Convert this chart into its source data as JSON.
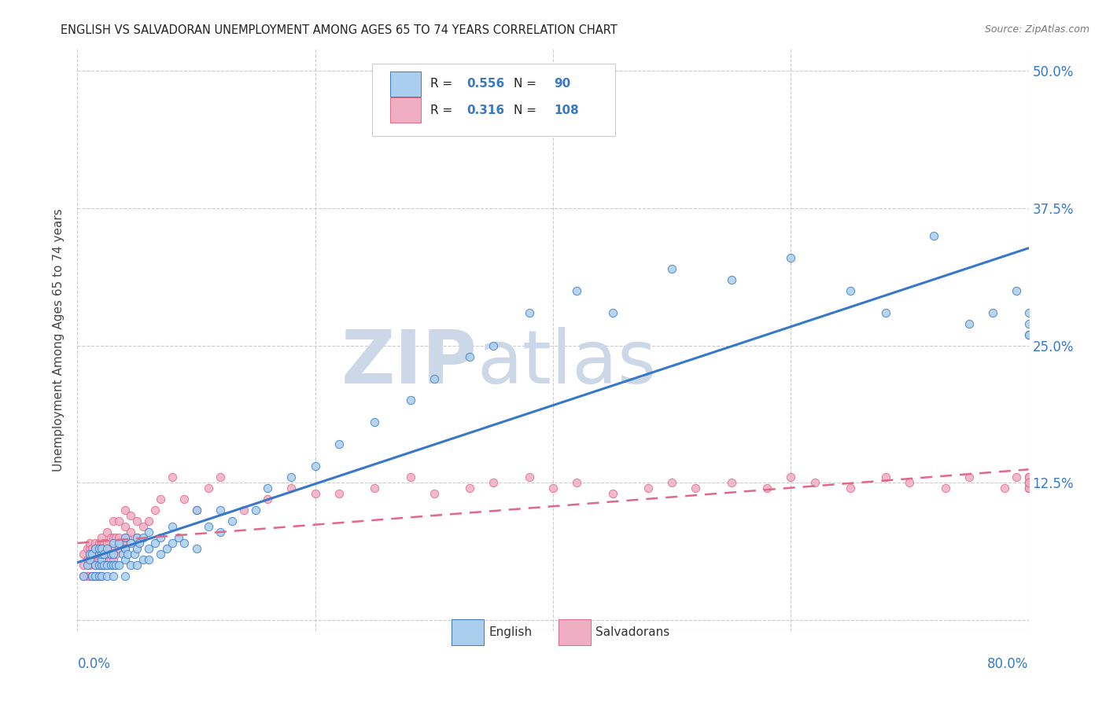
{
  "title": "ENGLISH VS SALVADORAN UNEMPLOYMENT AMONG AGES 65 TO 74 YEARS CORRELATION CHART",
  "source": "Source: ZipAtlas.com",
  "ylabel": "Unemployment Among Ages 65 to 74 years",
  "xlim": [
    0.0,
    0.8
  ],
  "ylim": [
    -0.01,
    0.52
  ],
  "yticks": [
    0.0,
    0.125,
    0.25,
    0.375,
    0.5
  ],
  "ytick_labels": [
    "",
    "12.5%",
    "25.0%",
    "37.5%",
    "50.0%"
  ],
  "xtick_left": "0.0%",
  "xtick_right": "80.0%",
  "legend_english_R": "0.556",
  "legend_english_N": "90",
  "legend_salvadoran_R": "0.316",
  "legend_salvadoran_N": "108",
  "english_color": "#aacfee",
  "salvadoran_color": "#f0aec4",
  "english_line_color": "#3878c8",
  "salvadoran_line_color": "#e06888",
  "background_color": "#ffffff",
  "watermark_color": "#ccd8e8",
  "grid_color": "#cccccc",
  "english_x": [
    0.005,
    0.008,
    0.01,
    0.01,
    0.012,
    0.012,
    0.015,
    0.015,
    0.015,
    0.018,
    0.018,
    0.018,
    0.018,
    0.02,
    0.02,
    0.02,
    0.02,
    0.02,
    0.022,
    0.022,
    0.025,
    0.025,
    0.025,
    0.028,
    0.028,
    0.03,
    0.03,
    0.03,
    0.03,
    0.032,
    0.035,
    0.035,
    0.038,
    0.04,
    0.04,
    0.04,
    0.04,
    0.042,
    0.045,
    0.045,
    0.048,
    0.05,
    0.05,
    0.05,
    0.052,
    0.055,
    0.055,
    0.06,
    0.06,
    0.06,
    0.065,
    0.07,
    0.07,
    0.075,
    0.08,
    0.08,
    0.085,
    0.09,
    0.1,
    0.1,
    0.11,
    0.12,
    0.12,
    0.13,
    0.15,
    0.16,
    0.18,
    0.2,
    0.22,
    0.25,
    0.28,
    0.3,
    0.33,
    0.35,
    0.38,
    0.42,
    0.45,
    0.5,
    0.55,
    0.6,
    0.65,
    0.68,
    0.72,
    0.75,
    0.77,
    0.79,
    0.8,
    0.8,
    0.8,
    0.8
  ],
  "english_y": [
    0.04,
    0.05,
    0.055,
    0.06,
    0.04,
    0.06,
    0.04,
    0.05,
    0.065,
    0.04,
    0.05,
    0.06,
    0.065,
    0.04,
    0.05,
    0.055,
    0.06,
    0.065,
    0.05,
    0.06,
    0.04,
    0.05,
    0.065,
    0.05,
    0.06,
    0.04,
    0.05,
    0.06,
    0.07,
    0.05,
    0.05,
    0.07,
    0.06,
    0.04,
    0.055,
    0.065,
    0.075,
    0.06,
    0.05,
    0.07,
    0.06,
    0.05,
    0.065,
    0.075,
    0.07,
    0.055,
    0.075,
    0.055,
    0.065,
    0.08,
    0.07,
    0.06,
    0.075,
    0.065,
    0.07,
    0.085,
    0.075,
    0.07,
    0.065,
    0.1,
    0.085,
    0.08,
    0.1,
    0.09,
    0.1,
    0.12,
    0.13,
    0.14,
    0.16,
    0.18,
    0.2,
    0.22,
    0.24,
    0.25,
    0.28,
    0.3,
    0.28,
    0.32,
    0.31,
    0.33,
    0.3,
    0.28,
    0.35,
    0.27,
    0.28,
    0.3,
    0.26,
    0.28,
    0.27,
    0.26
  ],
  "salvadoran_x": [
    0.005,
    0.005,
    0.005,
    0.008,
    0.008,
    0.008,
    0.01,
    0.01,
    0.01,
    0.01,
    0.01,
    0.012,
    0.012,
    0.012,
    0.015,
    0.015,
    0.015,
    0.015,
    0.015,
    0.015,
    0.018,
    0.018,
    0.018,
    0.018,
    0.018,
    0.02,
    0.02,
    0.02,
    0.02,
    0.02,
    0.02,
    0.022,
    0.022,
    0.022,
    0.025,
    0.025,
    0.025,
    0.025,
    0.028,
    0.028,
    0.028,
    0.03,
    0.03,
    0.03,
    0.03,
    0.032,
    0.032,
    0.035,
    0.035,
    0.035,
    0.038,
    0.04,
    0.04,
    0.04,
    0.04,
    0.042,
    0.045,
    0.045,
    0.05,
    0.05,
    0.055,
    0.06,
    0.065,
    0.07,
    0.08,
    0.09,
    0.1,
    0.11,
    0.12,
    0.14,
    0.16,
    0.18,
    0.2,
    0.22,
    0.25,
    0.28,
    0.3,
    0.33,
    0.35,
    0.38,
    0.4,
    0.42,
    0.45,
    0.48,
    0.5,
    0.52,
    0.55,
    0.58,
    0.6,
    0.62,
    0.65,
    0.68,
    0.7,
    0.73,
    0.75,
    0.78,
    0.79,
    0.8,
    0.8,
    0.8,
    0.8,
    0.8,
    0.8,
    0.8,
    0.8,
    0.8,
    0.8,
    0.8
  ],
  "salvadoran_y": [
    0.04,
    0.05,
    0.06,
    0.04,
    0.055,
    0.065,
    0.04,
    0.05,
    0.055,
    0.065,
    0.07,
    0.04,
    0.055,
    0.065,
    0.04,
    0.05,
    0.055,
    0.06,
    0.065,
    0.07,
    0.04,
    0.05,
    0.055,
    0.065,
    0.07,
    0.04,
    0.05,
    0.055,
    0.065,
    0.07,
    0.075,
    0.05,
    0.06,
    0.07,
    0.05,
    0.06,
    0.07,
    0.08,
    0.055,
    0.065,
    0.075,
    0.055,
    0.065,
    0.075,
    0.09,
    0.06,
    0.075,
    0.065,
    0.075,
    0.09,
    0.07,
    0.065,
    0.075,
    0.085,
    0.1,
    0.075,
    0.08,
    0.095,
    0.075,
    0.09,
    0.085,
    0.09,
    0.1,
    0.11,
    0.13,
    0.11,
    0.1,
    0.12,
    0.13,
    0.1,
    0.11,
    0.12,
    0.115,
    0.115,
    0.12,
    0.13,
    0.115,
    0.12,
    0.125,
    0.13,
    0.12,
    0.125,
    0.115,
    0.12,
    0.125,
    0.12,
    0.125,
    0.12,
    0.13,
    0.125,
    0.12,
    0.13,
    0.125,
    0.12,
    0.13,
    0.12,
    0.13,
    0.12,
    0.125,
    0.13,
    0.12,
    0.125,
    0.13,
    0.12,
    0.125,
    0.13,
    0.12,
    0.125
  ]
}
